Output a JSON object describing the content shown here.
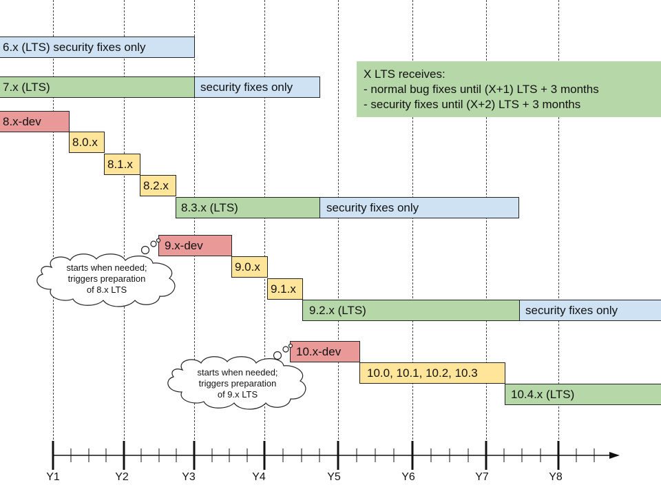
{
  "bars": [
    {
      "id": "6x-lts-security",
      "label": "6.x (LTS) security fixes only",
      "kind": "security"
    },
    {
      "id": "7x-lts",
      "label": "7.x (LTS)",
      "kind": "lts"
    },
    {
      "id": "7x-security",
      "label": "security fixes only",
      "kind": "security"
    },
    {
      "id": "8x-dev",
      "label": "8.x-dev",
      "kind": "dev"
    },
    {
      "id": "8-0-x",
      "label": "8.0.x",
      "kind": "release"
    },
    {
      "id": "8-1-x",
      "label": "8.1.x",
      "kind": "release"
    },
    {
      "id": "8-2-x",
      "label": "8.2.x",
      "kind": "release"
    },
    {
      "id": "8-3-x-lts",
      "label": "8.3.x (LTS)",
      "kind": "lts"
    },
    {
      "id": "8-3-x-security",
      "label": "security fixes only",
      "kind": "security"
    },
    {
      "id": "9x-dev",
      "label": "9.x-dev",
      "kind": "dev"
    },
    {
      "id": "9-0-x",
      "label": "9.0.x",
      "kind": "release"
    },
    {
      "id": "9-1-x",
      "label": "9.1.x",
      "kind": "release"
    },
    {
      "id": "9-2-x-lts",
      "label": "9.2.x (LTS)",
      "kind": "lts"
    },
    {
      "id": "9-2-x-security",
      "label": "security fixes only",
      "kind": "security"
    },
    {
      "id": "10x-dev",
      "label": "10.x-dev",
      "kind": "dev"
    },
    {
      "id": "10-0-to-10-3",
      "label": "10.0, 10.1, 10.2, 10.3",
      "kind": "release"
    },
    {
      "id": "10-4-x-lts",
      "label": "10.4.x (LTS)",
      "kind": "lts"
    }
  ],
  "note": {
    "title": "X LTS receives:",
    "line1": "- normal bug fixes until (X+1) LTS + 3 months",
    "line2": "- security fixes until (X+2) LTS + 3 months"
  },
  "clouds": [
    {
      "line1": "starts when needed;",
      "line2": "triggers preparation",
      "line3": "of 8.x LTS"
    },
    {
      "line1": "starts when needed;",
      "line2": "triggers preparation",
      "line3": "of 9.x LTS"
    }
  ],
  "axis": {
    "labels": [
      "Y1",
      "Y2",
      "Y3",
      "Y4",
      "Y5",
      "Y6",
      "Y7",
      "Y8"
    ]
  },
  "colors": {
    "dev": "#ea9999",
    "release": "#ffe599",
    "lts": "#b6d7a8",
    "security": "#cfe2f3"
  }
}
